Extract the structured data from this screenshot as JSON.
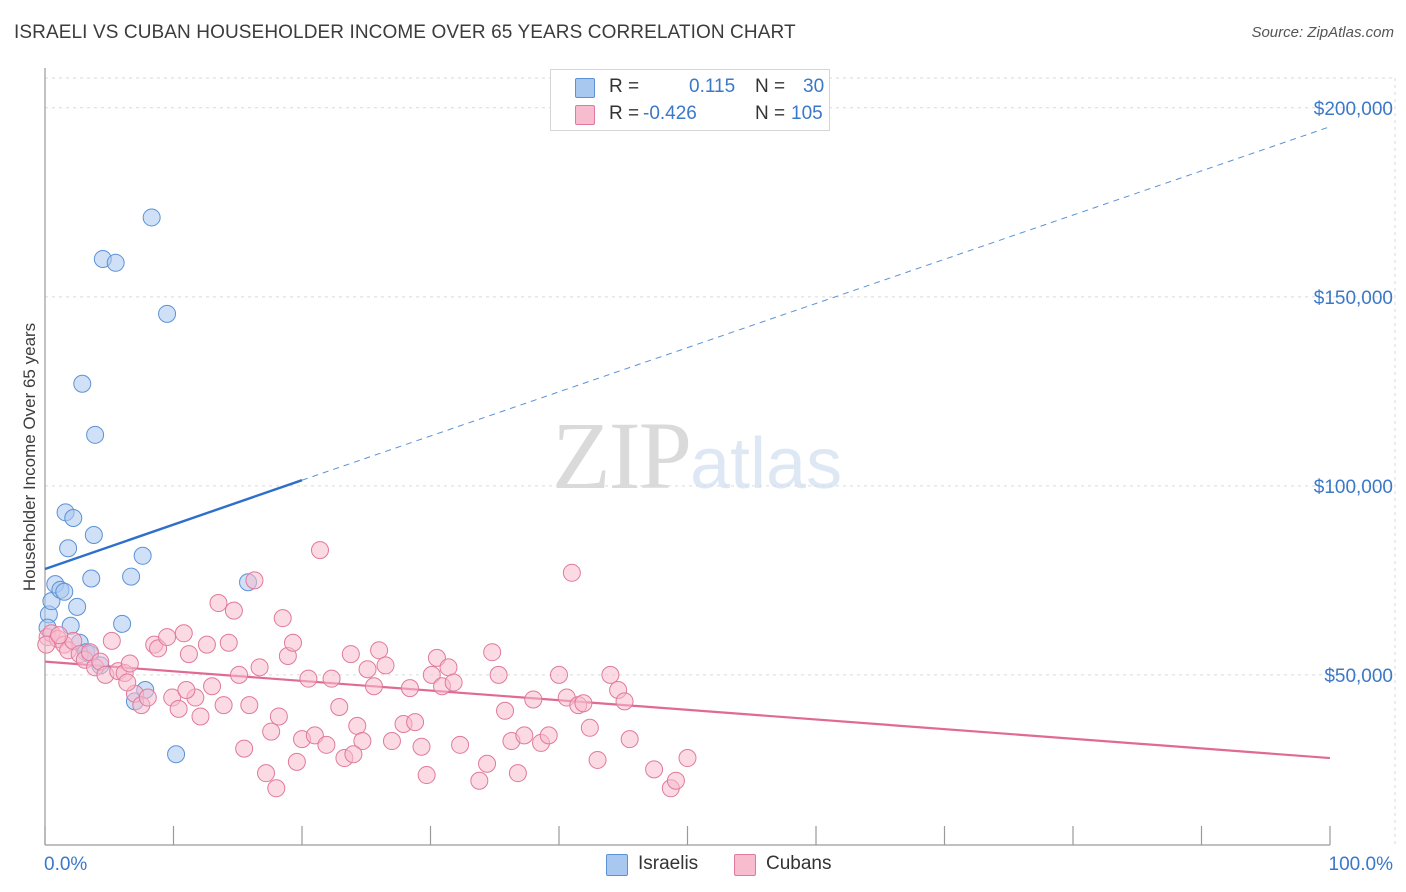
{
  "title": "ISRAELI VS CUBAN HOUSEHOLDER INCOME OVER 65 YEARS CORRELATION CHART",
  "source": "Source: ZipAtlas.com",
  "watermark": {
    "part1": "ZIP",
    "part2": "atlas"
  },
  "legend": {
    "rows": [
      {
        "r_label": "R =",
        "r_value": "0.115",
        "n_label": "N =",
        "n_value": "30",
        "color": "#a9c8f0",
        "border": "#5b92d6"
      },
      {
        "r_label": "R =",
        "r_value": "-0.426",
        "n_label": "N =",
        "n_value": "105",
        "color": "#f7bccd",
        "border": "#e07a9c"
      }
    ]
  },
  "bottom_legend": [
    {
      "label": "Israelis",
      "color": "#a9c8f0",
      "border": "#5b92d6"
    },
    {
      "label": "Cubans",
      "color": "#f7bccd",
      "border": "#e07a9c"
    }
  ],
  "chart_data": {
    "type": "scatter",
    "title": "ISRAELI VS CUBAN HOUSEHOLDER INCOME OVER 65 YEARS CORRELATION CHART",
    "xlabel": "",
    "ylabel": "Householder Income Over 65 years",
    "xlim": [
      0,
      100
    ],
    "ylim": [
      5000,
      210000
    ],
    "x_tick_labels": [
      "0.0%",
      "100.0%"
    ],
    "y_ticks": [
      50000,
      100000,
      150000,
      200000
    ],
    "y_tick_labels": [
      "$50,000",
      "$100,000",
      "$150,000",
      "$200,000"
    ],
    "grid": true,
    "legend_position": "top-center",
    "series": [
      {
        "name": "Israelis",
        "color": "#5b92d6",
        "fill": "#a9c8f0",
        "points": [
          [
            0.3,
            66000
          ],
          [
            0.5,
            69500
          ],
          [
            0.8,
            74000
          ],
          [
            1.2,
            72500
          ],
          [
            1.5,
            72000
          ],
          [
            1.6,
            93000
          ],
          [
            1.8,
            83500
          ],
          [
            2.0,
            63000
          ],
          [
            2.2,
            91500
          ],
          [
            2.5,
            68000
          ],
          [
            2.7,
            58500
          ],
          [
            2.9,
            127000
          ],
          [
            3.2,
            56000
          ],
          [
            3.5,
            55500
          ],
          [
            3.6,
            75500
          ],
          [
            3.8,
            87000
          ],
          [
            3.9,
            113500
          ],
          [
            4.3,
            52500
          ],
          [
            4.5,
            160000
          ],
          [
            5.5,
            159000
          ],
          [
            6.0,
            63500
          ],
          [
            6.7,
            76000
          ],
          [
            7.0,
            43000
          ],
          [
            7.6,
            81500
          ],
          [
            7.8,
            46000
          ],
          [
            8.3,
            171000
          ],
          [
            9.5,
            145500
          ],
          [
            10.2,
            29000
          ],
          [
            15.8,
            74500
          ],
          [
            0.2,
            62500
          ]
        ],
        "trend": {
          "x": [
            0,
            20
          ],
          "y": [
            78000,
            101500
          ],
          "extrapolated_to": [
            100,
            195000
          ]
        }
      },
      {
        "name": "Cubans",
        "color": "#e07a9c",
        "fill": "#f7bccd",
        "points": [
          [
            0.2,
            60000
          ],
          [
            0.5,
            61000
          ],
          [
            1.0,
            59500
          ],
          [
            1.5,
            58000
          ],
          [
            1.8,
            56500
          ],
          [
            2.2,
            59000
          ],
          [
            2.7,
            55500
          ],
          [
            3.1,
            54000
          ],
          [
            3.5,
            56000
          ],
          [
            3.9,
            52000
          ],
          [
            4.3,
            53500
          ],
          [
            4.7,
            50000
          ],
          [
            5.2,
            59000
          ],
          [
            5.7,
            51000
          ],
          [
            6.2,
            50500
          ],
          [
            6.6,
            53000
          ],
          [
            7.0,
            45000
          ],
          [
            7.5,
            42000
          ],
          [
            8.0,
            44000
          ],
          [
            8.5,
            58000
          ],
          [
            8.8,
            57000
          ],
          [
            9.5,
            60000
          ],
          [
            9.9,
            44000
          ],
          [
            10.4,
            41000
          ],
          [
            10.8,
            61000
          ],
          [
            11.2,
            55500
          ],
          [
            11.7,
            44000
          ],
          [
            12.1,
            39000
          ],
          [
            12.6,
            58000
          ],
          [
            13.0,
            47000
          ],
          [
            13.5,
            69000
          ],
          [
            13.9,
            42000
          ],
          [
            14.3,
            58500
          ],
          [
            14.7,
            67000
          ],
          [
            15.1,
            50000
          ],
          [
            15.5,
            30500
          ],
          [
            15.9,
            42000
          ],
          [
            16.3,
            75000
          ],
          [
            16.7,
            52000
          ],
          [
            17.2,
            24000
          ],
          [
            17.6,
            35000
          ],
          [
            18.0,
            20000
          ],
          [
            18.5,
            65000
          ],
          [
            18.9,
            55000
          ],
          [
            19.3,
            58500
          ],
          [
            19.6,
            27000
          ],
          [
            20.0,
            33000
          ],
          [
            20.5,
            49000
          ],
          [
            21.0,
            34000
          ],
          [
            21.4,
            83000
          ],
          [
            21.9,
            31500
          ],
          [
            22.3,
            49000
          ],
          [
            22.9,
            41500
          ],
          [
            23.3,
            28000
          ],
          [
            23.8,
            55500
          ],
          [
            24.3,
            36500
          ],
          [
            24.7,
            32500
          ],
          [
            25.1,
            51500
          ],
          [
            25.6,
            47000
          ],
          [
            26.0,
            56500
          ],
          [
            26.5,
            52500
          ],
          [
            27.0,
            32500
          ],
          [
            27.9,
            37000
          ],
          [
            28.4,
            46500
          ],
          [
            28.8,
            37500
          ],
          [
            29.3,
            31000
          ],
          [
            29.7,
            23500
          ],
          [
            30.1,
            50000
          ],
          [
            30.5,
            54500
          ],
          [
            30.9,
            47000
          ],
          [
            31.4,
            52000
          ],
          [
            31.8,
            48000
          ],
          [
            32.3,
            31500
          ],
          [
            33.8,
            22000
          ],
          [
            34.4,
            26500
          ],
          [
            34.8,
            56000
          ],
          [
            35.3,
            50000
          ],
          [
            35.8,
            40500
          ],
          [
            36.3,
            32500
          ],
          [
            36.8,
            24000
          ],
          [
            37.3,
            34000
          ],
          [
            38.0,
            43500
          ],
          [
            38.6,
            32000
          ],
          [
            39.2,
            34000
          ],
          [
            40.0,
            50000
          ],
          [
            40.6,
            44000
          ],
          [
            41.0,
            77000
          ],
          [
            41.5,
            42000
          ],
          [
            41.9,
            42500
          ],
          [
            42.4,
            36000
          ],
          [
            43.0,
            27500
          ],
          [
            44.0,
            50000
          ],
          [
            44.6,
            46000
          ],
          [
            45.1,
            43000
          ],
          [
            45.5,
            33000
          ],
          [
            47.4,
            25000
          ],
          [
            48.7,
            20000
          ],
          [
            49.1,
            22000
          ],
          [
            50.0,
            28000
          ],
          [
            0.1,
            58000
          ],
          [
            1.1,
            60500
          ],
          [
            6.4,
            48000
          ],
          [
            11.0,
            46000
          ],
          [
            18.2,
            39000
          ],
          [
            24.0,
            29000
          ]
        ],
        "trend": {
          "x": [
            0,
            100
          ],
          "y": [
            53500,
            28000
          ]
        }
      }
    ]
  }
}
